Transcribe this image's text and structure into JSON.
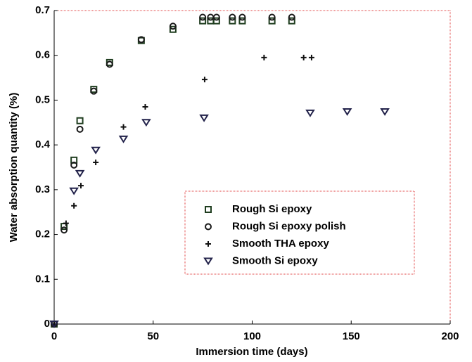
{
  "chart_data": {
    "type": "scatter",
    "xlabel": "Immersion time (days)",
    "ylabel": "Water absorption quantity (%)",
    "xlim": [
      0,
      200
    ],
    "xticks": [
      0,
      50,
      100,
      150,
      200
    ],
    "ylim": [
      0,
      0.7
    ],
    "yticks": [
      0,
      0.1,
      0.2,
      0.3,
      0.4,
      0.5,
      0.6,
      0.7
    ],
    "legend": "lower-right",
    "series": [
      {
        "name": "Rough Si epoxy",
        "color": "#1f3d1f",
        "marker": "square",
        "x": [
          0,
          5,
          10,
          13,
          20,
          28,
          44,
          60,
          75,
          79,
          82,
          90,
          95,
          110,
          120
        ],
        "values": [
          0,
          0.218,
          0.366,
          0.454,
          0.524,
          0.584,
          0.633,
          0.658,
          0.677,
          0.677,
          0.677,
          0.677,
          0.677,
          0.677,
          0.677
        ]
      },
      {
        "name": "Rough Si epoxy polish",
        "color": "#1a1a1a",
        "marker": "circle",
        "x": [
          0,
          5,
          10,
          13,
          20,
          28,
          44,
          60,
          75,
          79,
          82,
          90,
          95,
          110,
          120
        ],
        "values": [
          0,
          0.21,
          0.355,
          0.435,
          0.52,
          0.58,
          0.635,
          0.665,
          0.685,
          0.685,
          0.685,
          0.685,
          0.685,
          0.685,
          0.685
        ]
      },
      {
        "name": "Smooth THA epoxy",
        "color": "#111111",
        "marker": "plus",
        "x": [
          0,
          6,
          10,
          13.5,
          21,
          35,
          46,
          76,
          106,
          126,
          130
        ],
        "values": [
          0,
          0.225,
          0.264,
          0.309,
          0.361,
          0.44,
          0.485,
          0.546,
          0.595,
          0.595,
          0.595
        ]
      },
      {
        "name": "Smooth Si epoxy",
        "color": "#22224a",
        "marker": "triangle-down",
        "x": [
          0,
          10,
          13,
          21,
          35,
          46.5,
          75.7,
          129.3,
          148,
          167
        ],
        "values": [
          0,
          0.297,
          0.336,
          0.388,
          0.413,
          0.45,
          0.46,
          0.471,
          0.474,
          0.474
        ]
      }
    ]
  }
}
